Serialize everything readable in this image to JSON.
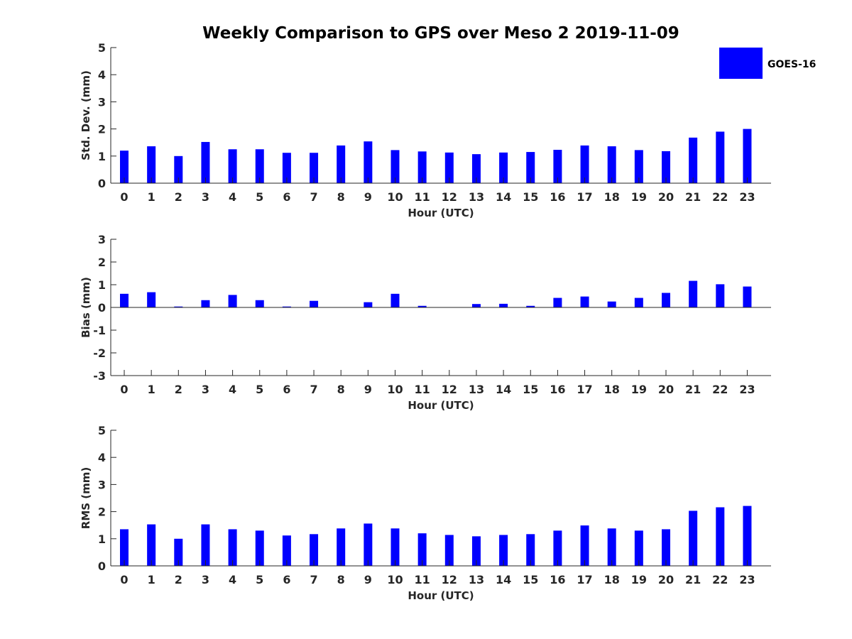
{
  "chart_data": {
    "title": "Weekly Comparison to GPS over Meso 2 2019-11-09",
    "legend": {
      "label": "GOES-16",
      "color": "#0000ff",
      "placement": "top-right"
    },
    "panels": [
      {
        "type": "bar",
        "ylabel": "Std. Dev. (mm)",
        "xlabel": "Hour (UTC)",
        "ylim": [
          0,
          5
        ],
        "yticks": [
          0,
          1,
          2,
          3,
          4,
          5
        ],
        "categories": [
          "0",
          "1",
          "2",
          "3",
          "4",
          "5",
          "6",
          "7",
          "8",
          "9",
          "10",
          "11",
          "12",
          "13",
          "14",
          "15",
          "16",
          "17",
          "18",
          "19",
          "20",
          "21",
          "22",
          "23"
        ],
        "values": [
          1.2,
          1.36,
          1.0,
          1.52,
          1.25,
          1.25,
          1.12,
          1.12,
          1.39,
          1.54,
          1.22,
          1.17,
          1.13,
          1.07,
          1.13,
          1.15,
          1.23,
          1.39,
          1.36,
          1.22,
          1.18,
          1.68,
          1.9,
          2.0
        ]
      },
      {
        "type": "bar",
        "ylabel": "Bias (mm)",
        "xlabel": "Hour (UTC)",
        "ylim": [
          -3,
          3
        ],
        "yticks": [
          -3,
          -2,
          -1,
          0,
          1,
          2,
          3
        ],
        "categories": [
          "0",
          "1",
          "2",
          "3",
          "4",
          "5",
          "6",
          "7",
          "8",
          "9",
          "10",
          "11",
          "12",
          "13",
          "14",
          "15",
          "16",
          "17",
          "18",
          "19",
          "20",
          "21",
          "22",
          "23"
        ],
        "values": [
          0.6,
          0.67,
          0.04,
          0.32,
          0.55,
          0.32,
          0.04,
          0.29,
          0.0,
          0.23,
          0.6,
          0.07,
          0.0,
          0.15,
          0.16,
          0.07,
          0.42,
          0.48,
          0.26,
          0.42,
          0.64,
          1.17,
          1.02,
          0.92
        ]
      },
      {
        "type": "bar",
        "ylabel": "RMS (mm)",
        "xlabel": "Hour (UTC)",
        "ylim": [
          0,
          5
        ],
        "yticks": [
          0,
          1,
          2,
          3,
          4,
          5
        ],
        "categories": [
          "0",
          "1",
          "2",
          "3",
          "4",
          "5",
          "6",
          "7",
          "8",
          "9",
          "10",
          "11",
          "12",
          "13",
          "14",
          "15",
          "16",
          "17",
          "18",
          "19",
          "20",
          "21",
          "22",
          "23"
        ],
        "values": [
          1.35,
          1.53,
          1.0,
          1.53,
          1.35,
          1.3,
          1.12,
          1.17,
          1.38,
          1.56,
          1.38,
          1.2,
          1.14,
          1.09,
          1.14,
          1.17,
          1.3,
          1.49,
          1.38,
          1.3,
          1.35,
          2.03,
          2.16,
          2.21
        ]
      }
    ]
  }
}
